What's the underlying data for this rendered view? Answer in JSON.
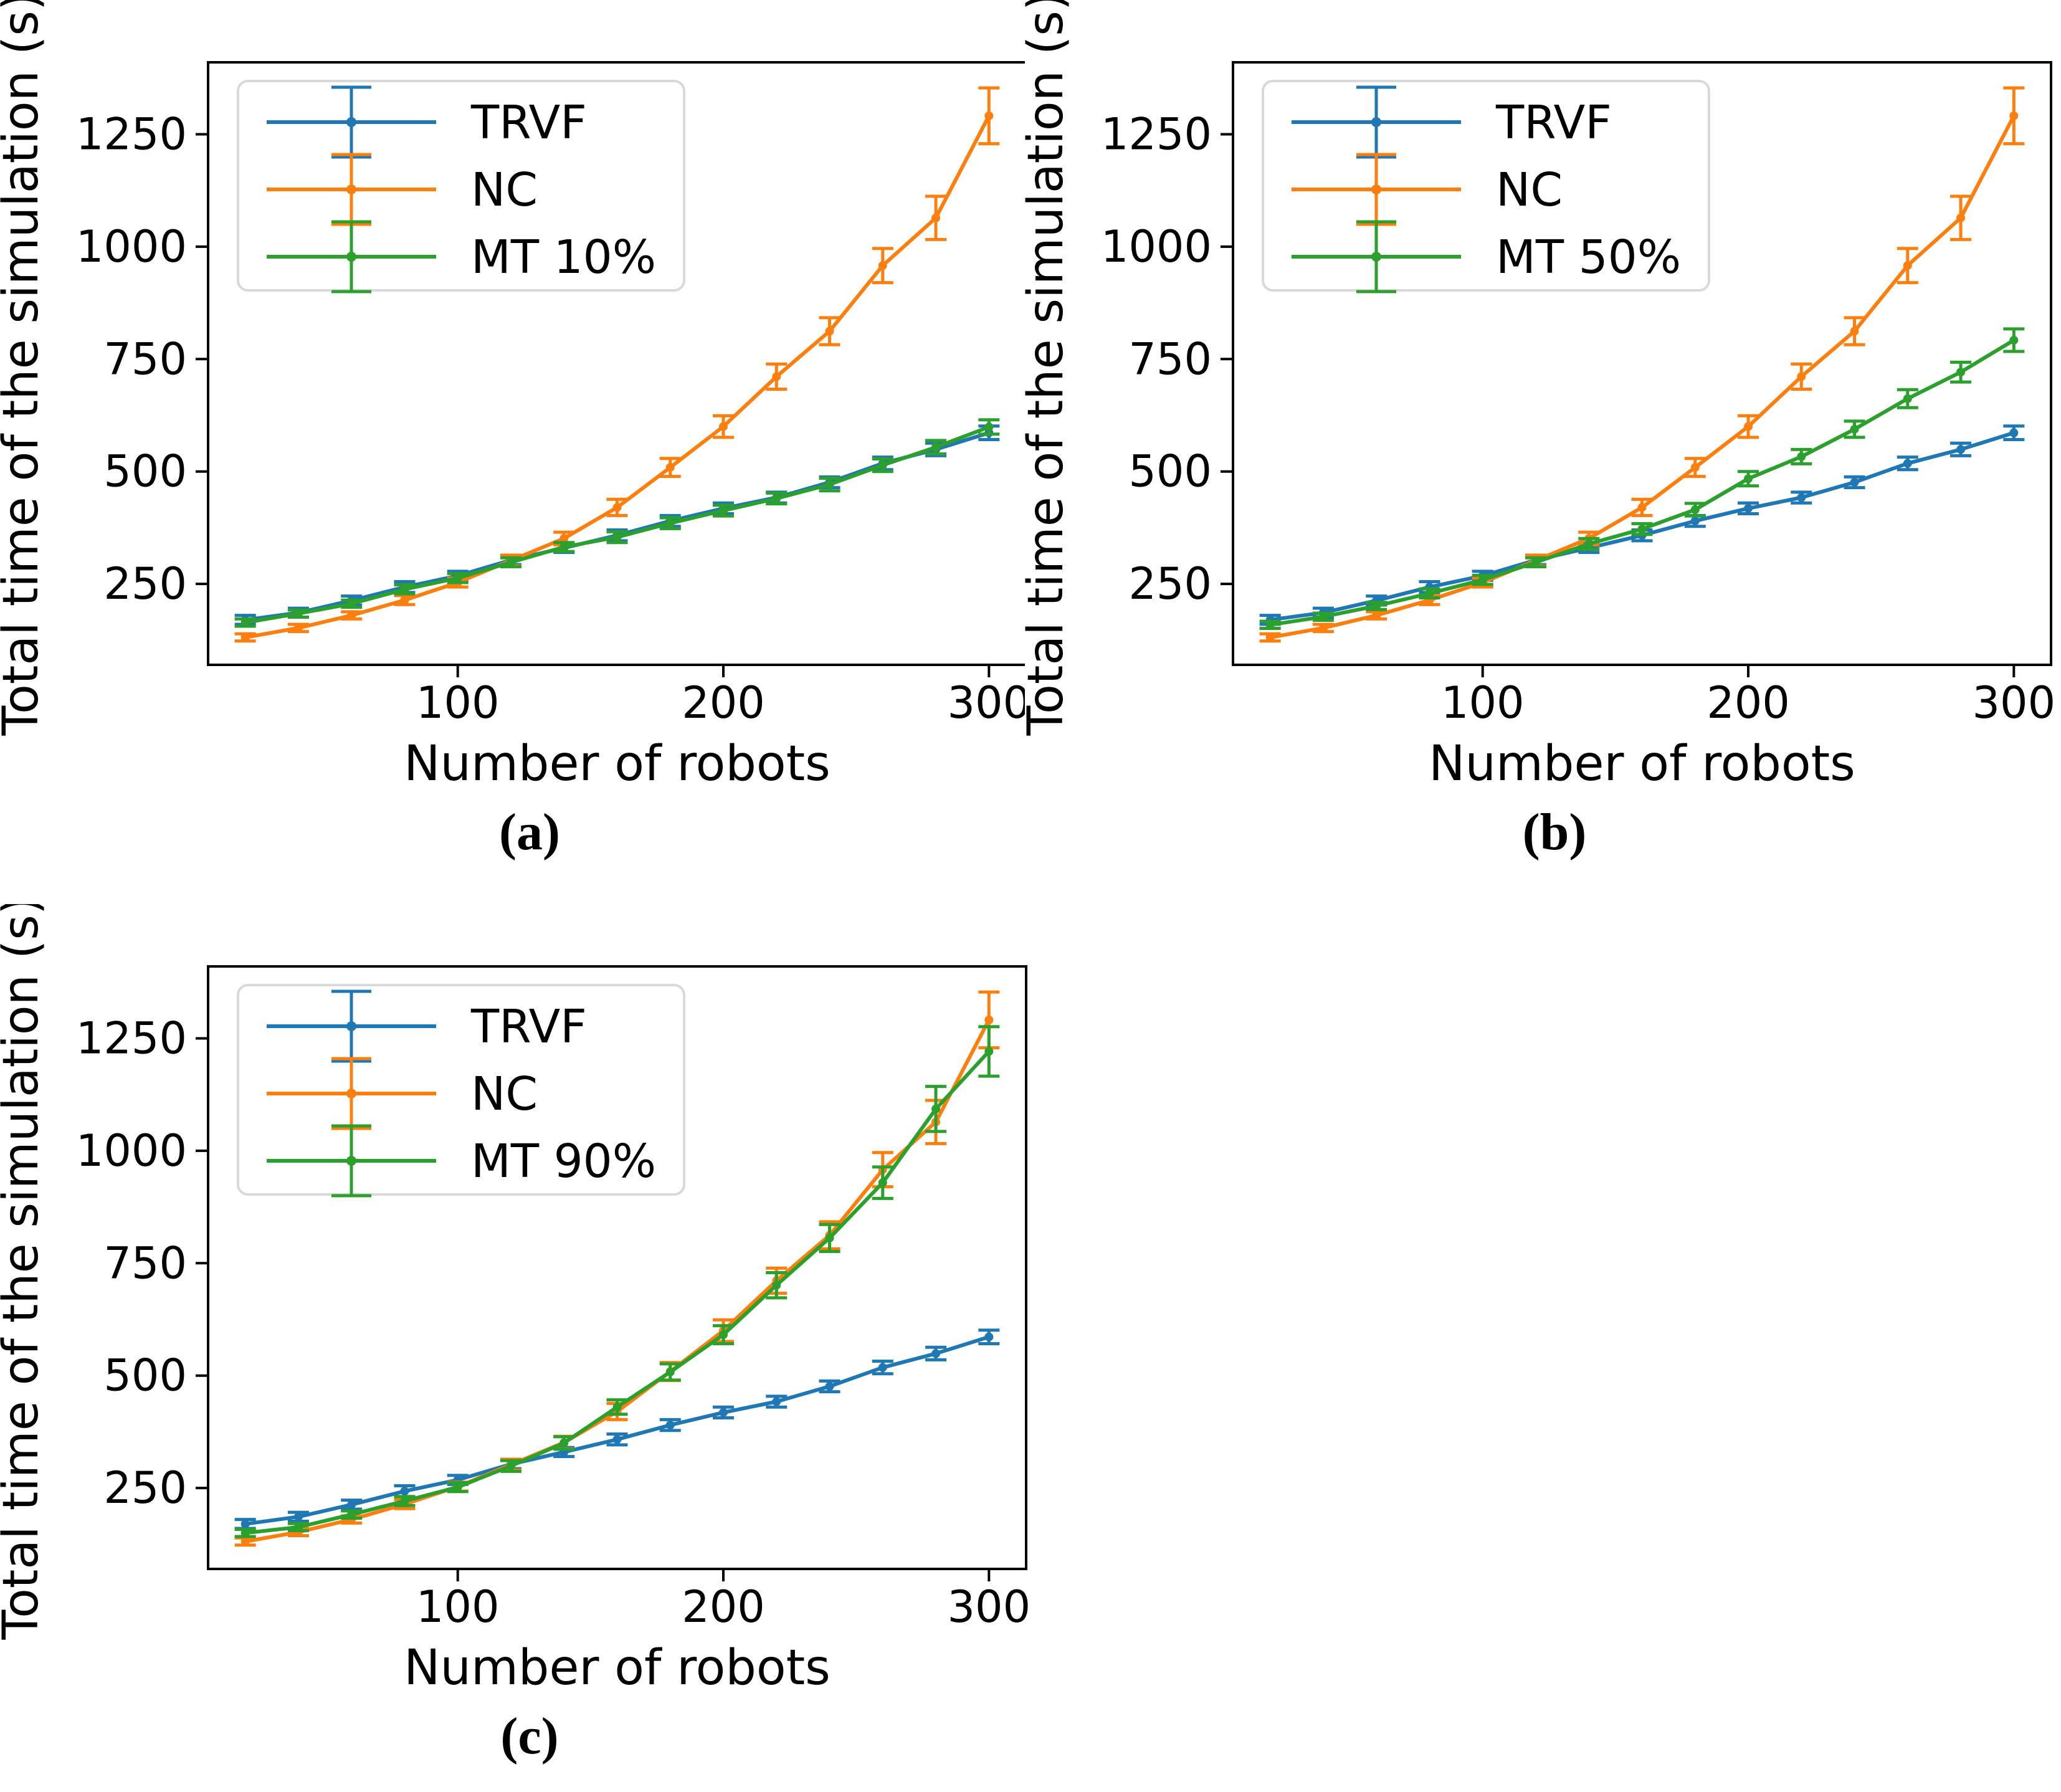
{
  "figure": {
    "background": "#ffffff",
    "axis_color": "#000000",
    "legend_border_color": "#d9d9d9",
    "xlim": [
      6,
      314
    ],
    "ylim": [
      70,
      1410
    ],
    "x_ticks": [
      100,
      200,
      300
    ],
    "y_ticks": [
      250,
      500,
      750,
      1000,
      1250
    ],
    "grid": "off",
    "legend_position": "upper left"
  },
  "chart_data": [
    {
      "id": "a",
      "type": "line",
      "caption": "(a)",
      "xlabel": "Number of robots",
      "ylabel": "Total time of the simulation (s)",
      "x": [
        20,
        40,
        60,
        80,
        100,
        120,
        140,
        160,
        180,
        200,
        220,
        240,
        260,
        280,
        300
      ],
      "series": [
        {
          "name": "TRVF",
          "color": "#1f77b4",
          "values": [
            170,
            186,
            213,
            243,
            268,
            303,
            330,
            358,
            390,
            418,
            442,
            476,
            518,
            549,
            586
          ],
          "errors": [
            10,
            10,
            10,
            12,
            10,
            10,
            10,
            12,
            12,
            12,
            12,
            12,
            14,
            14,
            15
          ]
        },
        {
          "name": "NC",
          "color": "#ff7f0e",
          "values": [
            131,
            152,
            180,
            214,
            253,
            302,
            351,
            420,
            509,
            600,
            711,
            812,
            958,
            1064,
            1291
          ],
          "errors": [
            8,
            8,
            8,
            10,
            10,
            12,
            14,
            18,
            20,
            24,
            28,
            30,
            38,
            48,
            62
          ]
        },
        {
          "name": "MT 10%",
          "color": "#2ca02c",
          "values": [
            164,
            184,
            206,
            238,
            263,
            298,
            332,
            354,
            385,
            413,
            440,
            471,
            514,
            554,
            599
          ],
          "errors": [
            8,
            8,
            8,
            10,
            10,
            10,
            10,
            12,
            12,
            12,
            12,
            14,
            14,
            15,
            16
          ]
        }
      ]
    },
    {
      "id": "b",
      "type": "line",
      "caption": "(b)",
      "xlabel": "Number of robots",
      "ylabel": "Total time of the simulation (s)",
      "x": [
        20,
        40,
        60,
        80,
        100,
        120,
        140,
        160,
        180,
        200,
        220,
        240,
        260,
        280,
        300
      ],
      "series": [
        {
          "name": "TRVF",
          "color": "#1f77b4",
          "values": [
            170,
            186,
            213,
            243,
            268,
            303,
            330,
            358,
            390,
            418,
            442,
            476,
            518,
            549,
            586
          ],
          "errors": [
            10,
            10,
            10,
            12,
            10,
            10,
            10,
            12,
            12,
            12,
            12,
            12,
            14,
            14,
            15
          ]
        },
        {
          "name": "NC",
          "color": "#ff7f0e",
          "values": [
            131,
            152,
            180,
            214,
            253,
            302,
            351,
            420,
            509,
            600,
            711,
            812,
            958,
            1064,
            1291
          ],
          "errors": [
            8,
            8,
            8,
            10,
            10,
            12,
            14,
            18,
            20,
            24,
            28,
            30,
            38,
            48,
            62
          ]
        },
        {
          "name": "MT 50%",
          "color": "#2ca02c",
          "values": [
            159,
            177,
            201,
            229,
            259,
            298,
            339,
            372,
            415,
            484,
            533,
            594,
            662,
            721,
            792
          ],
          "errors": [
            8,
            8,
            8,
            10,
            10,
            10,
            12,
            12,
            14,
            16,
            16,
            18,
            20,
            22,
            25
          ]
        }
      ]
    },
    {
      "id": "c",
      "type": "line",
      "caption": "(c)",
      "xlabel": "Number of robots",
      "ylabel": "Total time of the simulation (s)",
      "x": [
        20,
        40,
        60,
        80,
        100,
        120,
        140,
        160,
        180,
        200,
        220,
        240,
        260,
        280,
        300
      ],
      "series": [
        {
          "name": "TRVF",
          "color": "#1f77b4",
          "values": [
            170,
            186,
            213,
            243,
            268,
            303,
            330,
            358,
            390,
            418,
            442,
            476,
            518,
            549,
            586
          ],
          "errors": [
            10,
            10,
            10,
            12,
            10,
            10,
            10,
            12,
            12,
            12,
            12,
            12,
            14,
            14,
            15
          ]
        },
        {
          "name": "NC",
          "color": "#ff7f0e",
          "values": [
            131,
            152,
            180,
            214,
            253,
            302,
            351,
            420,
            509,
            600,
            711,
            812,
            958,
            1064,
            1291
          ],
          "errors": [
            8,
            8,
            8,
            10,
            10,
            12,
            14,
            18,
            20,
            24,
            28,
            30,
            38,
            48,
            62
          ]
        },
        {
          "name": "MT 90%",
          "color": "#2ca02c",
          "values": [
            150,
            163,
            191,
            221,
            252,
            299,
            350,
            430,
            508,
            591,
            701,
            806,
            929,
            1093,
            1221
          ],
          "errors": [
            8,
            8,
            8,
            10,
            10,
            12,
            14,
            16,
            18,
            20,
            28,
            30,
            35,
            50,
            55
          ]
        }
      ]
    }
  ]
}
